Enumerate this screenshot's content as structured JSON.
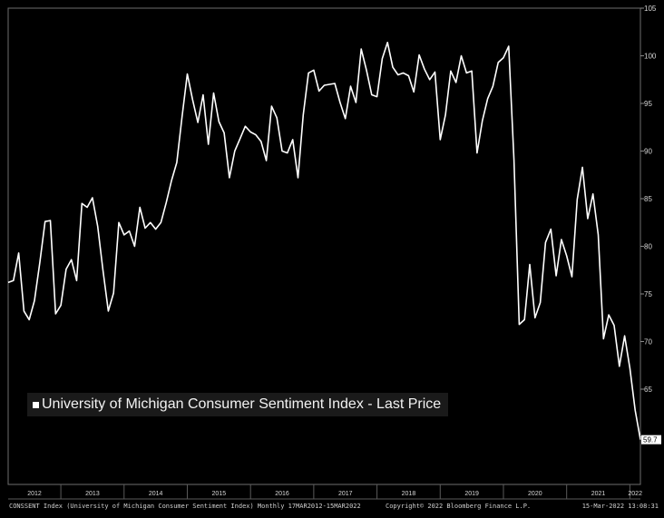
{
  "chart_data": {
    "type": "line",
    "title": "",
    "xlabel": "",
    "ylabel": "",
    "ylim": [
      55,
      105
    ],
    "xlim": [
      "2012-03",
      "2022-03"
    ],
    "yticks": [
      60,
      65,
      70,
      75,
      80,
      85,
      90,
      95,
      100,
      105
    ],
    "ytick_labels": [
      "",
      "65",
      "70",
      "75",
      "80",
      "85",
      "90",
      "95",
      "100",
      "105"
    ],
    "year_labels": [
      "2012",
      "2013",
      "2014",
      "2015",
      "2016",
      "2017",
      "2018",
      "2019",
      "2020",
      "2021",
      "2022"
    ],
    "grid": false,
    "legend_position": "bottom-left",
    "series": [
      {
        "name": "University of Michigan Consumer Sentiment Index - Last Price",
        "color": "#ffffff",
        "last_value_label": "59.7",
        "x": [
          "2012-03",
          "2012-04",
          "2012-05",
          "2012-06",
          "2012-07",
          "2012-08",
          "2012-09",
          "2012-10",
          "2012-11",
          "2012-12",
          "2013-01",
          "2013-02",
          "2013-03",
          "2013-04",
          "2013-05",
          "2013-06",
          "2013-07",
          "2013-08",
          "2013-09",
          "2013-10",
          "2013-11",
          "2013-12",
          "2014-01",
          "2014-02",
          "2014-03",
          "2014-04",
          "2014-05",
          "2014-06",
          "2014-07",
          "2014-08",
          "2014-09",
          "2014-10",
          "2014-11",
          "2014-12",
          "2015-01",
          "2015-02",
          "2015-03",
          "2015-04",
          "2015-05",
          "2015-06",
          "2015-07",
          "2015-08",
          "2015-09",
          "2015-10",
          "2015-11",
          "2015-12",
          "2016-01",
          "2016-02",
          "2016-03",
          "2016-04",
          "2016-05",
          "2016-06",
          "2016-07",
          "2016-08",
          "2016-09",
          "2016-10",
          "2016-11",
          "2016-12",
          "2017-01",
          "2017-02",
          "2017-03",
          "2017-04",
          "2017-05",
          "2017-06",
          "2017-07",
          "2017-08",
          "2017-09",
          "2017-10",
          "2017-11",
          "2017-12",
          "2018-01",
          "2018-02",
          "2018-03",
          "2018-04",
          "2018-05",
          "2018-06",
          "2018-07",
          "2018-08",
          "2018-09",
          "2018-10",
          "2018-11",
          "2018-12",
          "2019-01",
          "2019-02",
          "2019-03",
          "2019-04",
          "2019-05",
          "2019-06",
          "2019-07",
          "2019-08",
          "2019-09",
          "2019-10",
          "2019-11",
          "2019-12",
          "2020-01",
          "2020-02",
          "2020-03",
          "2020-04",
          "2020-05",
          "2020-06",
          "2020-07",
          "2020-08",
          "2020-09",
          "2020-10",
          "2020-11",
          "2020-12",
          "2021-01",
          "2021-02",
          "2021-03",
          "2021-04",
          "2021-05",
          "2021-06",
          "2021-07",
          "2021-08",
          "2021-09",
          "2021-10",
          "2021-11",
          "2021-12",
          "2022-01",
          "2022-02",
          "2022-03"
        ],
        "values": [
          76.2,
          76.4,
          79.3,
          73.2,
          72.3,
          74.3,
          78.3,
          82.6,
          82.7,
          72.9,
          73.8,
          77.6,
          78.6,
          76.4,
          84.5,
          84.1,
          85.1,
          82.1,
          77.5,
          73.2,
          75.1,
          82.5,
          81.2,
          81.6,
          80.0,
          84.1,
          81.9,
          82.5,
          81.8,
          82.5,
          84.6,
          86.9,
          88.8,
          93.6,
          98.1,
          95.4,
          93.0,
          95.9,
          90.7,
          96.1,
          93.1,
          91.9,
          87.2,
          90.0,
          91.3,
          92.6,
          92.0,
          91.7,
          91.0,
          89.0,
          94.7,
          93.5,
          90.0,
          89.8,
          91.2,
          87.2,
          93.8,
          98.2,
          98.5,
          96.3,
          96.9,
          97.0,
          97.1,
          95.1,
          93.4,
          96.8,
          95.1,
          100.7,
          98.5,
          95.9,
          95.7,
          99.7,
          101.4,
          98.8,
          98.0,
          98.2,
          97.9,
          96.2,
          100.1,
          98.6,
          97.5,
          98.3,
          91.2,
          93.8,
          98.4,
          97.2,
          100.0,
          98.2,
          98.4,
          89.8,
          93.2,
          95.5,
          96.8,
          99.3,
          99.8,
          101.0,
          89.1,
          71.8,
          72.3,
          78.1,
          72.5,
          74.1,
          80.4,
          81.8,
          76.9,
          80.7,
          79.0,
          76.8,
          84.9,
          88.3,
          82.9,
          85.5,
          81.2,
          70.3,
          72.8,
          71.7,
          67.4,
          70.6,
          67.2,
          62.8,
          59.7
        ]
      }
    ]
  },
  "footer": {
    "left": "CONSSENT Index (University of Michigan Consumer Sentiment Index)  Monthly 17MAR2012-15MAR2022",
    "center": "Copyright© 2022 Bloomberg Finance L.P.",
    "right": "15-Mar-2022 13:08:31"
  }
}
